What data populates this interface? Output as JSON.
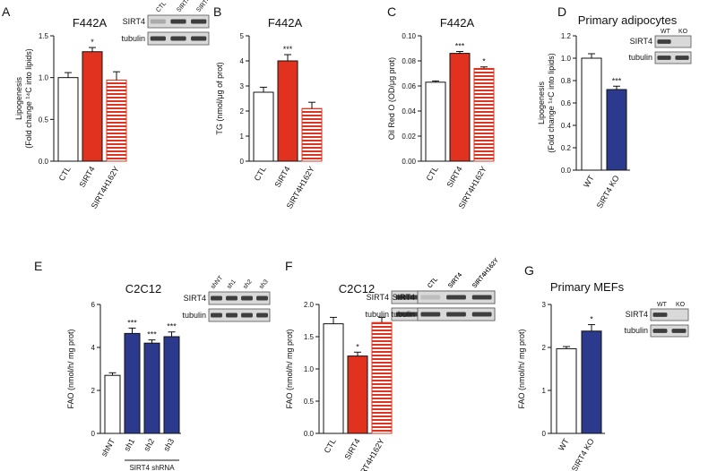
{
  "chart_data": [
    {
      "id": "A",
      "panel_label": "A",
      "type": "bar",
      "title": "F442A",
      "ylabel": "Lipogenesis\n(Fold change ¹⁴C into lipids)",
      "ylim": [
        0,
        1.5
      ],
      "yticks": [
        "0.0",
        "0.5",
        "1.0",
        "1.5"
      ],
      "ytick_values": [
        0,
        0.5,
        1.0,
        1.5
      ],
      "categories": [
        "CTL",
        "SIRT4",
        "SIRT4H162Y"
      ],
      "values": [
        1.0,
        1.31,
        0.97
      ],
      "errors": [
        0.06,
        0.05,
        0.1
      ],
      "significance": [
        "",
        "*",
        ""
      ],
      "bar_styles": [
        "white",
        "red",
        "red-striped"
      ]
    },
    {
      "id": "B",
      "panel_label": "B",
      "type": "bar",
      "title": "F442A",
      "ylabel": "TG (nmol/μg of prot)",
      "ylim": [
        0,
        5
      ],
      "yticks": [
        "0",
        "1",
        "2",
        "3",
        "4",
        "5"
      ],
      "ytick_values": [
        0,
        1,
        2,
        3,
        4,
        5
      ],
      "categories": [
        "CTL",
        "SIRT4",
        "SIRT4H162Y"
      ],
      "values": [
        2.75,
        4.0,
        2.1
      ],
      "errors": [
        0.2,
        0.25,
        0.25
      ],
      "significance": [
        "",
        "***",
        ""
      ],
      "bar_styles": [
        "white",
        "red",
        "red-striped"
      ]
    },
    {
      "id": "C",
      "panel_label": "C",
      "type": "bar",
      "title": "F442A",
      "ylabel": "Oil Red O (OD/μg prot)",
      "ylim": [
        0,
        0.1
      ],
      "yticks": [
        "0.00",
        "0.02",
        "0.04",
        "0.06",
        "0.08",
        "0.10"
      ],
      "ytick_values": [
        0,
        0.02,
        0.04,
        0.06,
        0.08,
        0.1
      ],
      "categories": [
        "CTL",
        "SIRT4",
        "SIRT4H162Y"
      ],
      "values": [
        0.063,
        0.086,
        0.074
      ],
      "errors": [
        0.001,
        0.0015,
        0.0012
      ],
      "significance": [
        "",
        "***",
        "*"
      ],
      "bar_styles": [
        "white",
        "red",
        "red-striped"
      ]
    },
    {
      "id": "D",
      "panel_label": "D",
      "type": "bar",
      "title": "Primary adipocytes",
      "ylabel": "Lipogenesis\n(Fold change ¹⁴C into lipids)",
      "ylim": [
        0,
        1.2
      ],
      "yticks": [
        "0.0",
        "0.2",
        "0.4",
        "0.6",
        "0.8",
        "1.0",
        "1.2"
      ],
      "ytick_values": [
        0,
        0.2,
        0.4,
        0.6,
        0.8,
        1.0,
        1.2
      ],
      "categories": [
        "WT",
        "SIRT4 KO"
      ],
      "values": [
        1.0,
        0.72
      ],
      "errors": [
        0.04,
        0.03
      ],
      "significance": [
        "",
        "***"
      ],
      "bar_styles": [
        "white",
        "blue"
      ]
    },
    {
      "id": "E",
      "panel_label": "E",
      "type": "bar",
      "title": "C2C12",
      "ylabel": "FAO (nmol/h/ mg prot)",
      "ylim": [
        0,
        6
      ],
      "yticks": [
        "0",
        "2",
        "4",
        "6"
      ],
      "ytick_values": [
        0,
        2,
        4,
        6
      ],
      "categories": [
        "shNT",
        "sh1",
        "sh2",
        "sh3"
      ],
      "values": [
        2.7,
        4.65,
        4.2,
        4.5
      ],
      "errors": [
        0.12,
        0.25,
        0.15,
        0.22
      ],
      "significance": [
        "",
        "***",
        "***",
        "***"
      ],
      "bar_styles": [
        "white",
        "blue",
        "blue",
        "blue"
      ],
      "group_label": "SIRT4 shRNA"
    },
    {
      "id": "F",
      "panel_label": "F",
      "type": "bar",
      "title": "C2C12",
      "ylabel": "FAO (nmol/h/ mg prot)",
      "ylim": [
        0,
        2.0
      ],
      "yticks": [
        "0.0",
        "0.5",
        "1.0",
        "1.5",
        "2.0"
      ],
      "ytick_values": [
        0,
        0.5,
        1.0,
        1.5,
        2.0
      ],
      "categories": [
        "CTL",
        "SIRT4",
        "SIRT4H162Y"
      ],
      "values": [
        1.7,
        1.2,
        1.72
      ],
      "errors": [
        0.1,
        0.06,
        0.08
      ],
      "significance": [
        "",
        "*",
        ""
      ],
      "bar_styles": [
        "white",
        "red",
        "red-striped"
      ]
    },
    {
      "id": "G",
      "panel_label": "G",
      "type": "bar",
      "title": "Primary MEFs",
      "ylabel": "FAO (nmol/h/ mg prot)",
      "ylim": [
        0,
        3
      ],
      "yticks": [
        "0",
        "1",
        "2",
        "3"
      ],
      "ytick_values": [
        0,
        1,
        2,
        3
      ],
      "categories": [
        "WT",
        "SIRT4 KO"
      ],
      "values": [
        1.97,
        2.38
      ],
      "errors": [
        0.05,
        0.15
      ],
      "significance": [
        "",
        "*"
      ],
      "bar_styles": [
        "white",
        "blue"
      ]
    }
  ],
  "blots": [
    {
      "id": "A",
      "lanes": [
        "CTL",
        "SIRT4",
        "SIRT4H162Y"
      ],
      "rows": [
        "SIRT4",
        "tubulin"
      ]
    },
    {
      "id": "C",
      "lanes": [
        "CTL",
        "SIRT4",
        "SIRT4H162Y"
      ],
      "rows": [
        "SIRT4",
        "tubulin"
      ]
    },
    {
      "id": "D",
      "lanes": [
        "WT",
        "KO"
      ],
      "rows": [
        "SIRT4",
        "tubulin"
      ]
    },
    {
      "id": "E",
      "lanes": [
        "shNT",
        "sh1",
        "sh2",
        "sh3"
      ],
      "rows": [
        "SIRT4",
        "tubulin"
      ]
    },
    {
      "id": "F",
      "lanes": [
        "CTL",
        "SIRT4",
        "SIRT4H162Y"
      ],
      "rows": [
        "SIRT4",
        "tubulin"
      ]
    },
    {
      "id": "G",
      "lanes": [
        "WT",
        "KO"
      ],
      "rows": [
        "SIRT4",
        "tubulin"
      ]
    }
  ],
  "colors": {
    "red": "#e0321e",
    "blue": "#2b3a8c",
    "white": "#ffffff",
    "axis": "#111111",
    "blot_bg": "#d9d9d9",
    "band": "#222222"
  }
}
